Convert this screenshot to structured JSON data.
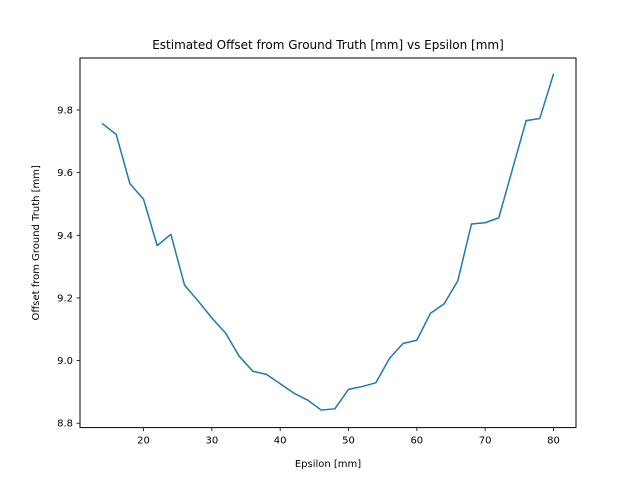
{
  "chart_data": {
    "type": "line",
    "title": "Estimated Offset from Ground Truth [mm] vs Epsilon [mm]",
    "xlabel": "Epsilon [mm]",
    "ylabel": "Offset from Ground Truth [mm]",
    "xlim": [
      10.7,
      83.3
    ],
    "ylim": [
      8.786,
      9.966
    ],
    "xticks": [
      20,
      30,
      40,
      50,
      60,
      70,
      80
    ],
    "yticks": [
      8.8,
      9.0,
      9.2,
      9.4,
      9.6,
      9.8
    ],
    "ytick_labels": [
      "8.8",
      "9.0",
      "9.2",
      "9.4",
      "9.6",
      "9.8"
    ],
    "grid": false,
    "line_color": "#1f77b4",
    "series": [
      {
        "x": [
          14,
          16,
          18,
          20,
          22,
          24,
          26,
          28,
          30,
          32,
          34,
          36,
          38,
          40,
          42,
          44,
          46,
          48,
          50,
          52,
          54,
          56,
          58,
          60,
          62,
          64,
          66,
          68,
          70,
          72,
          74,
          76,
          78,
          80
        ],
        "values": [
          9.756,
          9.722,
          9.565,
          9.515,
          9.367,
          9.403,
          9.241,
          9.19,
          9.136,
          9.088,
          9.014,
          8.966,
          8.956,
          8.926,
          8.896,
          8.874,
          8.842,
          8.846,
          8.908,
          8.917,
          8.929,
          9.007,
          9.055,
          9.065,
          9.151,
          9.181,
          9.255,
          9.436,
          9.44,
          9.456,
          9.611,
          9.766,
          9.773,
          9.914
        ]
      }
    ]
  }
}
